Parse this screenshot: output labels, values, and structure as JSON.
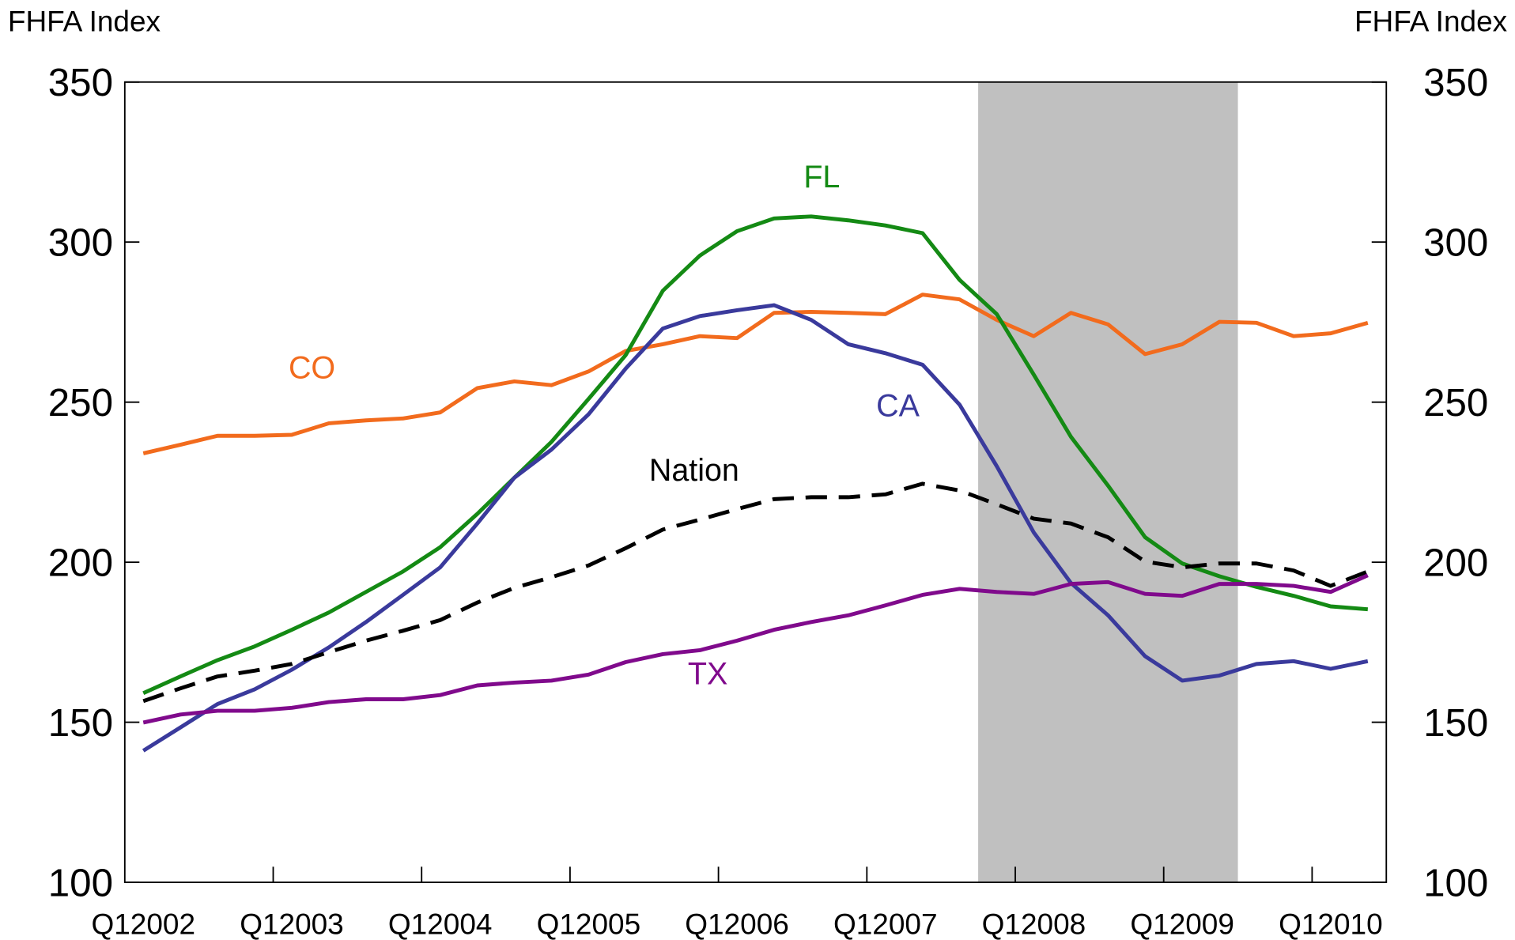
{
  "chart_data": {
    "type": "line",
    "ylabel": "FHFA Index",
    "y2label": "FHFA Index",
    "categories": [
      "Q12002",
      null,
      null,
      null,
      "Q12003",
      null,
      null,
      null,
      "Q12004",
      null,
      null,
      null,
      "Q12005",
      null,
      null,
      null,
      "Q12006",
      null,
      null,
      null,
      "Q12007",
      null,
      null,
      null,
      "Q12008",
      null,
      null,
      null,
      "Q12009",
      null,
      null,
      null,
      "Q12010",
      null
    ],
    "ylim": [
      100,
      350
    ],
    "yticks": [
      100,
      150,
      200,
      250,
      300,
      350
    ],
    "y2lim": [
      100,
      350
    ],
    "y2ticks": [
      100,
      150,
      200,
      250,
      300,
      350
    ],
    "shaded": {
      "from": 23,
      "to": 29,
      "color": "#c0c0c0"
    },
    "series": [
      {
        "name": "CO",
        "color": "#f26b1d",
        "values": [
          234.0,
          236.7,
          239.5,
          239.5,
          239.8,
          243.4,
          244.3,
          244.9,
          246.8,
          254.4,
          256.5,
          255.3,
          259.6,
          266.0,
          268.1,
          270.6,
          270.0,
          277.9,
          278.2,
          277.9,
          277.5,
          283.6,
          282.1,
          275.7,
          270.6,
          277.9,
          274.3,
          265.0,
          268.1,
          275.1,
          274.8,
          270.6,
          271.5,
          274.8
        ]
      },
      {
        "name": "FL",
        "color": "#148a14",
        "values": [
          159.1,
          164.3,
          169.4,
          173.7,
          178.9,
          184.3,
          190.7,
          197.1,
          204.7,
          215.1,
          226.4,
          237.6,
          251.0,
          264.7,
          284.8,
          295.8,
          303.4,
          307.4,
          308.0,
          306.8,
          305.2,
          302.8,
          288.2,
          277.5,
          258.6,
          239.2,
          223.9,
          207.8,
          199.6,
          195.6,
          192.3,
          189.5,
          186.2,
          185.3
        ]
      },
      {
        "name": "CA",
        "color": "#3a3a9c",
        "values": [
          141.1,
          148.4,
          155.7,
          160.3,
          166.4,
          173.4,
          181.3,
          189.8,
          198.4,
          212.1,
          226.4,
          235.2,
          246.2,
          260.5,
          273.0,
          276.9,
          278.7,
          280.3,
          275.7,
          268.1,
          265.3,
          261.7,
          249.2,
          230.0,
          209.3,
          193.5,
          183.4,
          170.6,
          163.0,
          164.6,
          168.2,
          169.1,
          166.7,
          169.1
        ]
      },
      {
        "name": "Nation",
        "color": "#000000",
        "dashed": true,
        "values": [
          156.6,
          160.6,
          164.3,
          166.1,
          168.2,
          171.9,
          175.5,
          178.6,
          181.9,
          187.4,
          192.0,
          195.3,
          199.0,
          204.4,
          210.2,
          213.3,
          216.6,
          219.7,
          220.3,
          220.3,
          221.2,
          224.5,
          222.4,
          218.1,
          213.6,
          212.1,
          207.8,
          200.2,
          198.4,
          199.6,
          199.6,
          197.4,
          192.6,
          197.1
        ]
      },
      {
        "name": "TX",
        "color": "#800a8c",
        "values": [
          149.9,
          152.4,
          153.6,
          153.6,
          154.5,
          156.3,
          157.2,
          157.2,
          158.5,
          161.5,
          162.4,
          163.0,
          164.9,
          168.8,
          171.3,
          172.5,
          175.5,
          178.9,
          181.3,
          183.4,
          186.5,
          189.8,
          191.7,
          190.7,
          190.1,
          193.2,
          193.8,
          190.1,
          189.5,
          193.2,
          193.2,
          192.6,
          190.7,
          195.9
        ]
      }
    ]
  }
}
